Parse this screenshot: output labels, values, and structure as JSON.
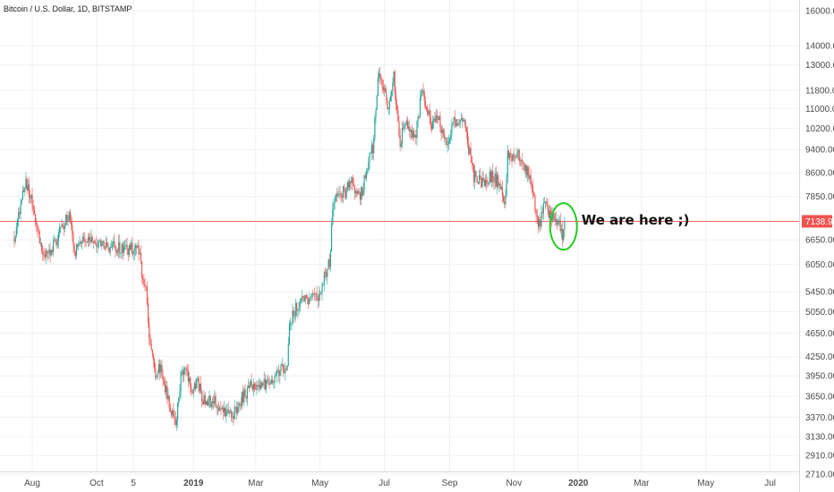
{
  "chart_data": {
    "type": "candlestick",
    "title": "Bitcoin / U.S. Dollar, 1D, BITSTAMP",
    "y_scale": "log",
    "ylim": [
      2710,
      16000
    ],
    "xlim": [
      "2018-07-15",
      "2020-07-20"
    ],
    "grid": true,
    "y_ticks": [
      "16000.00",
      "14000.00",
      "13000.00",
      "11800.00",
      "11000.00",
      "10200.00",
      "9400.00",
      "8600.00",
      "7850.00",
      "7138.96",
      "6650.00",
      "6050.00",
      "5450.00",
      "5050.00",
      "4650.00",
      "4250.00",
      "3950.00",
      "3650.00",
      "3370.00",
      "3130.00",
      "2910.00",
      "2710.00"
    ],
    "x_ticks": [
      {
        "label": "Aug",
        "date": "2018-08-01"
      },
      {
        "label": "Oct",
        "date": "2018-10-01"
      },
      {
        "label": "5",
        "date": "2018-11-05"
      },
      {
        "label": "2019",
        "date": "2019-01-01"
      },
      {
        "label": "Mar",
        "date": "2019-03-01"
      },
      {
        "label": "May",
        "date": "2019-05-01"
      },
      {
        "label": "Jul",
        "date": "2019-07-01"
      },
      {
        "label": "Sep",
        "date": "2019-09-01"
      },
      {
        "label": "Nov",
        "date": "2019-11-01"
      },
      {
        "label": "2020",
        "date": "2020-01-01"
      },
      {
        "label": "Mar",
        "date": "2020-03-01"
      },
      {
        "label": "May",
        "date": "2020-05-01"
      },
      {
        "label": "Jul",
        "date": "2020-07-01"
      }
    ],
    "last_price": 7138.96,
    "last_price_label": "7138.96",
    "annotation": {
      "text": "We are here ;)",
      "date": "2019-12-18",
      "price": 7000
    },
    "colors": {
      "up": "#26a69a",
      "down": "#ef5350",
      "last_price": "#ef5350",
      "annotation_circle": "#22cc22"
    },
    "close_path": [
      [
        "2018-07-15",
        6700
      ],
      [
        "2018-07-20",
        7400
      ],
      [
        "2018-07-25",
        8300
      ],
      [
        "2018-07-31",
        7750
      ],
      [
        "2018-08-05",
        7000
      ],
      [
        "2018-08-10",
        6300
      ],
      [
        "2018-08-15",
        6250
      ],
      [
        "2018-08-20",
        6500
      ],
      [
        "2018-08-25",
        6700
      ],
      [
        "2018-08-31",
        7100
      ],
      [
        "2018-09-05",
        7350
      ],
      [
        "2018-09-10",
        6300
      ],
      [
        "2018-09-15",
        6500
      ],
      [
        "2018-09-20",
        6600
      ],
      [
        "2018-09-25",
        6700
      ],
      [
        "2018-09-30",
        6600
      ],
      [
        "2018-10-05",
        6550
      ],
      [
        "2018-10-10",
        6500
      ],
      [
        "2018-10-15",
        6480
      ],
      [
        "2018-10-20",
        6450
      ],
      [
        "2018-10-25",
        6420
      ],
      [
        "2018-10-31",
        6400
      ],
      [
        "2018-11-05",
        6450
      ],
      [
        "2018-11-10",
        6350
      ],
      [
        "2018-11-14",
        5700
      ],
      [
        "2018-11-17",
        5500
      ],
      [
        "2018-11-20",
        4600
      ],
      [
        "2018-11-25",
        4000
      ],
      [
        "2018-11-30",
        4100
      ],
      [
        "2018-12-05",
        3800
      ],
      [
        "2018-12-10",
        3500
      ],
      [
        "2018-12-15",
        3250
      ],
      [
        "2018-12-20",
        3950
      ],
      [
        "2018-12-25",
        4000
      ],
      [
        "2018-12-31",
        3700
      ],
      [
        "2019-01-05",
        3850
      ],
      [
        "2019-01-10",
        3600
      ],
      [
        "2019-01-20",
        3580
      ],
      [
        "2019-01-31",
        3450
      ],
      [
        "2019-02-07",
        3400
      ],
      [
        "2019-02-15",
        3600
      ],
      [
        "2019-02-24",
        3800
      ],
      [
        "2019-03-05",
        3800
      ],
      [
        "2019-03-20",
        3950
      ],
      [
        "2019-03-31",
        4100
      ],
      [
        "2019-04-02",
        4850
      ],
      [
        "2019-04-10",
        5200
      ],
      [
        "2019-04-20",
        5300
      ],
      [
        "2019-04-30",
        5400
      ],
      [
        "2019-05-10",
        6100
      ],
      [
        "2019-05-14",
        7800
      ],
      [
        "2019-05-20",
        8000
      ],
      [
        "2019-05-25",
        8000
      ],
      [
        "2019-05-31",
        8500
      ],
      [
        "2019-06-05",
        7800
      ],
      [
        "2019-06-10",
        8000
      ],
      [
        "2019-06-15",
        8800
      ],
      [
        "2019-06-20",
        9500
      ],
      [
        "2019-06-26",
        12800
      ],
      [
        "2019-06-30",
        11800
      ],
      [
        "2019-07-05",
        11000
      ],
      [
        "2019-07-10",
        12500
      ],
      [
        "2019-07-16",
        9500
      ],
      [
        "2019-07-20",
        10500
      ],
      [
        "2019-07-25",
        10000
      ],
      [
        "2019-07-31",
        10000
      ],
      [
        "2019-08-06",
        11900
      ],
      [
        "2019-08-10",
        11200
      ],
      [
        "2019-08-15",
        10300
      ],
      [
        "2019-08-20",
        10800
      ],
      [
        "2019-08-29",
        9500
      ],
      [
        "2019-09-05",
        10500
      ],
      [
        "2019-09-15",
        10300
      ],
      [
        "2019-09-24",
        8500
      ],
      [
        "2019-09-30",
        8300
      ],
      [
        "2019-10-10",
        8500
      ],
      [
        "2019-10-20",
        8200
      ],
      [
        "2019-10-23",
        7500
      ],
      [
        "2019-10-26",
        9300
      ],
      [
        "2019-10-31",
        9150
      ],
      [
        "2019-11-05",
        9300
      ],
      [
        "2019-11-12",
        8800
      ],
      [
        "2019-11-18",
        8200
      ],
      [
        "2019-11-22",
        7200
      ],
      [
        "2019-11-25",
        7050
      ],
      [
        "2019-11-30",
        7600
      ],
      [
        "2019-12-05",
        7350
      ],
      [
        "2019-12-10",
        7300
      ],
      [
        "2019-12-15",
        7000
      ],
      [
        "2019-12-17",
        6650
      ],
      [
        "2019-12-19",
        7150
      ]
    ]
  }
}
